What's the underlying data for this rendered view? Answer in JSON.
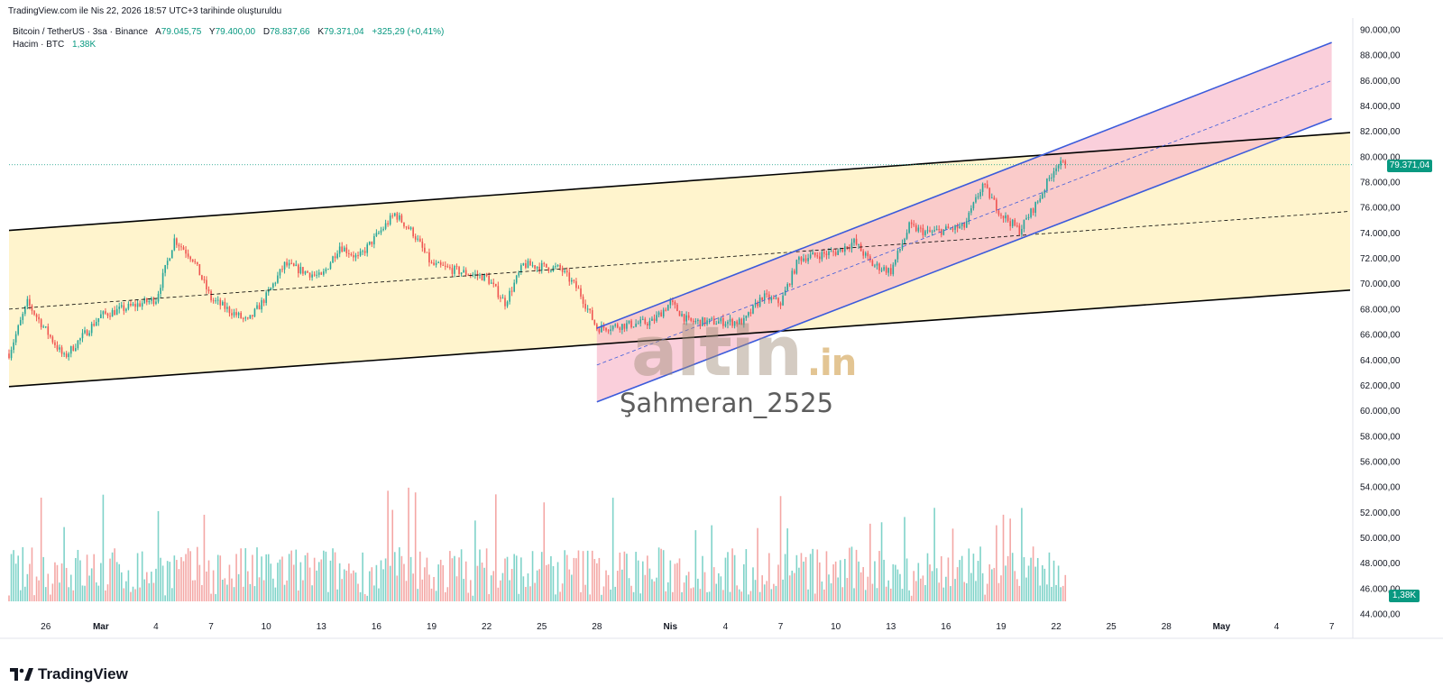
{
  "snapshot_caption": "TradingView.com ile Nis 22, 2026 18:57 UTC+3 tarihinde oluşturuldu",
  "legend": {
    "symbol": "Bitcoin / TetherUS · 3sa · Binance",
    "open_label": "A",
    "open": "79.045,75",
    "high_label": "Y",
    "high": "79.400,00",
    "low_label": "D",
    "low": "78.837,66",
    "close_label": "K",
    "close": "79.371,04",
    "change": "+325,29 (+0,41%)",
    "volume_label": "Hacim · BTC",
    "volume": "1,38K"
  },
  "brand": "TradingView",
  "watermark_logo": "altin",
  "watermark_logo_suffix": ".in",
  "watermark_user": "Şahmeran_2525",
  "price_badge": "79.371,04",
  "volume_badge": "1,38K",
  "colors": {
    "up": "#26a69a",
    "down": "#ef5350",
    "vol_up": "#7fd3c9",
    "vol_down": "#f4a7a5",
    "channel_fill": "#fff3c8",
    "blue_line": "#3b5bdb",
    "pink_fill": "#f7b6c8",
    "accent": "#089981"
  },
  "chart_data": {
    "type": "candlestick",
    "y_axis_ticks": [
      "90.000,00",
      "88.000,00",
      "86.000,00",
      "84.000,00",
      "82.000,00",
      "80.000,00",
      "78.000,00",
      "76.000,00",
      "74.000,00",
      "72.000,00",
      "70.000,00",
      "68.000,00",
      "66.000,00",
      "64.000,00",
      "62.000,00",
      "60.000,00",
      "58.000,00",
      "56.000,00",
      "54.000,00",
      "52.000,00",
      "50.000,00",
      "48.000,00",
      "46.000,00",
      "44.000,00"
    ],
    "ylim": [
      44000,
      90000
    ],
    "x_axis_ticks": [
      "26",
      "Mar",
      "4",
      "7",
      "10",
      "13",
      "16",
      "19",
      "22",
      "25",
      "28",
      "Nis",
      "4",
      "7",
      "10",
      "13",
      "16",
      "19",
      "22",
      "25",
      "28",
      "May",
      "4",
      "7"
    ],
    "anchor_points": [
      {
        "date": "2026-02-24",
        "price": 64500
      },
      {
        "date": "2026-02-25",
        "price": 68500
      },
      {
        "date": "2026-02-27",
        "price": 64200
      },
      {
        "date": "2026-03-01",
        "price": 67500
      },
      {
        "date": "2026-03-04",
        "price": 68800
      },
      {
        "date": "2026-03-05",
        "price": 73500
      },
      {
        "date": "2026-03-06",
        "price": 72000
      },
      {
        "date": "2026-03-07",
        "price": 68800
      },
      {
        "date": "2026-03-09",
        "price": 67000
      },
      {
        "date": "2026-03-10",
        "price": 69000
      },
      {
        "date": "2026-03-11",
        "price": 71500
      },
      {
        "date": "2026-03-13",
        "price": 70500
      },
      {
        "date": "2026-03-14",
        "price": 73000
      },
      {
        "date": "2026-03-15",
        "price": 72000
      },
      {
        "date": "2026-03-17",
        "price": 75500
      },
      {
        "date": "2026-03-18",
        "price": 74000
      },
      {
        "date": "2026-03-19",
        "price": 71500
      },
      {
        "date": "2026-03-21",
        "price": 70800
      },
      {
        "date": "2026-03-22",
        "price": 70500
      },
      {
        "date": "2026-03-23",
        "price": 68500
      },
      {
        "date": "2026-03-24",
        "price": 71500
      },
      {
        "date": "2026-03-26",
        "price": 71200
      },
      {
        "date": "2026-03-27",
        "price": 69500
      },
      {
        "date": "2026-03-28",
        "price": 66500
      },
      {
        "date": "2026-03-31",
        "price": 67000
      },
      {
        "date": "2026-04-01",
        "price": 68500
      },
      {
        "date": "2026-04-02",
        "price": 67000
      },
      {
        "date": "2026-04-05",
        "price": 67000
      },
      {
        "date": "2026-04-06",
        "price": 69000
      },
      {
        "date": "2026-04-07",
        "price": 68500
      },
      {
        "date": "2026-04-08",
        "price": 72000
      },
      {
        "date": "2026-04-10",
        "price": 72500
      },
      {
        "date": "2026-04-11",
        "price": 73300
      },
      {
        "date": "2026-04-12",
        "price": 71500
      },
      {
        "date": "2026-04-13",
        "price": 71000
      },
      {
        "date": "2026-04-14",
        "price": 74500
      },
      {
        "date": "2026-04-15",
        "price": 74000
      },
      {
        "date": "2026-04-17",
        "price": 74500
      },
      {
        "date": "2026-04-18",
        "price": 77800
      },
      {
        "date": "2026-04-19",
        "price": 75500
      },
      {
        "date": "2026-04-20",
        "price": 74200
      },
      {
        "date": "2026-04-21",
        "price": 76500
      },
      {
        "date": "2026-04-22",
        "price": 79371
      }
    ],
    "drawings": {
      "yellow_channel": {
        "upper": [
          [
            "2026-02-24",
            74200
          ],
          [
            "2026-05-08",
            81900
          ]
        ],
        "lower": [
          [
            "2026-02-24",
            61900
          ],
          [
            "2026-05-08",
            69500
          ]
        ],
        "mid": [
          [
            "2026-02-24",
            68000
          ],
          [
            "2026-05-08",
            75700
          ]
        ]
      },
      "blue_channel": {
        "upper": [
          [
            "2026-03-28",
            66500
          ],
          [
            "2026-05-07",
            89000
          ]
        ],
        "lower": [
          [
            "2026-03-28",
            60700
          ],
          [
            "2026-05-07",
            83000
          ]
        ],
        "mid": [
          [
            "2026-03-28",
            63600
          ],
          [
            "2026-05-07",
            86000
          ]
        ]
      }
    },
    "last_price": 79371.04,
    "grid": false,
    "legend_position": "top-left"
  }
}
